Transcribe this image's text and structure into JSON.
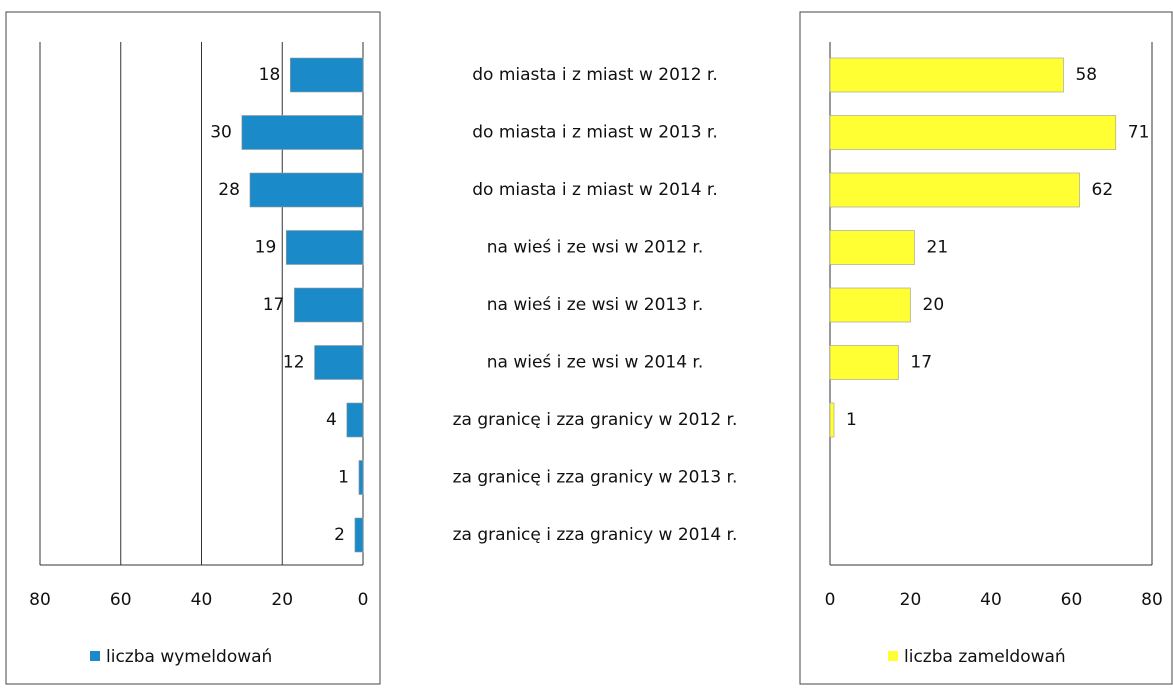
{
  "chart_data": [
    {
      "type": "bar",
      "orientation": "horizontal",
      "categories": [
        "do miasta i z miast w 2012 r.",
        "do miasta i z miast w 2013 r.",
        "do miasta i z miast w 2014 r.",
        "na wieś i ze wsi w 2012 r.",
        "na wieś i ze wsi w 2013 r.",
        "na wieś i ze wsi w 2014 r.",
        "za granicę i zza granicy w 2012 r.",
        "za granicę i zza granicy w 2013 r.",
        "za granicę i zza granicy w 2014 r."
      ],
      "series": [
        {
          "name": "liczba wymeldowań",
          "color": "#1b8ac9",
          "values": [
            18,
            30,
            28,
            19,
            17,
            12,
            4,
            1,
            2
          ]
        }
      ],
      "xlim": [
        80,
        0
      ],
      "xticks": [
        80,
        60,
        40,
        20,
        0
      ],
      "grid": true,
      "legend": "bottom"
    },
    {
      "type": "bar",
      "orientation": "horizontal",
      "series": [
        {
          "name": "liczba zameldowań",
          "color": "#ffff33",
          "values": [
            58,
            71,
            62,
            21,
            20,
            17,
            1,
            null,
            null
          ]
        }
      ],
      "xlim": [
        0,
        80
      ],
      "xticks": [
        0,
        20,
        40,
        60,
        80
      ],
      "grid": false,
      "legend": "bottom"
    }
  ]
}
